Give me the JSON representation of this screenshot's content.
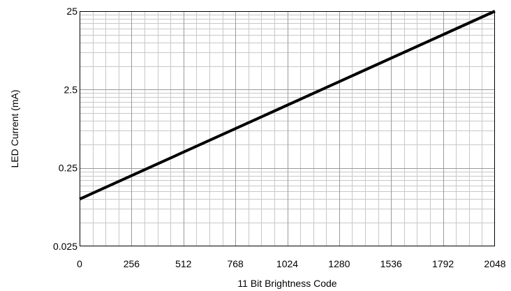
{
  "chart_data": {
    "type": "line",
    "title": "",
    "xlabel": "11 Bit Brightness Code",
    "ylabel": "LED Current (mA)",
    "xlim": [
      0,
      2048
    ],
    "ylim": [
      0.025,
      25
    ],
    "yscale": "log",
    "grid": true,
    "legend": "none",
    "x_ticks": [
      0,
      256,
      512,
      768,
      1024,
      1280,
      1536,
      1792,
      2048
    ],
    "x_tick_labels": [
      "0",
      "256",
      "512",
      "768",
      "1024",
      "1280",
      "1536",
      "1792",
      "2048"
    ],
    "x_minor_step": 64,
    "y_ticks": [
      0.025,
      0.25,
      2.5,
      25
    ],
    "y_tick_labels": [
      "0.025",
      "0.25",
      "2.5",
      "25"
    ],
    "series": [
      {
        "x": [
          0,
          2048
        ],
        "y": [
          0.1,
          25
        ],
        "color": "#000000"
      }
    ]
  }
}
